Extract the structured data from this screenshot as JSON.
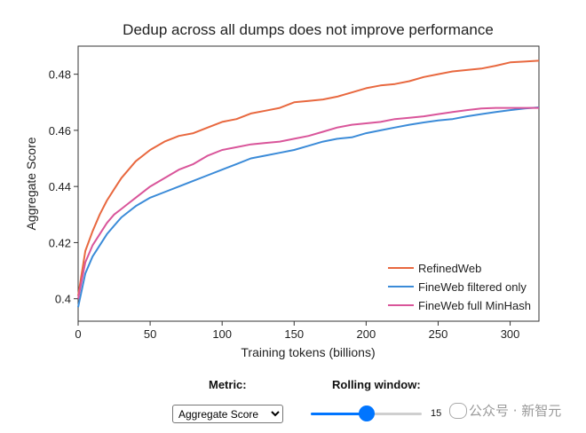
{
  "chart_data": {
    "type": "line",
    "title": "Dedup across all dumps does not improve performance",
    "xlabel": "Training tokens (billions)",
    "ylabel": "Aggregate Score",
    "xlim": [
      0,
      320
    ],
    "ylim": [
      0.392,
      0.49
    ],
    "xticks": [
      0,
      50,
      100,
      150,
      200,
      250,
      300
    ],
    "yticks": [
      0.4,
      0.42,
      0.44,
      0.46,
      0.48
    ],
    "xtick_labels": [
      "0",
      "50",
      "100",
      "150",
      "200",
      "250",
      "300"
    ],
    "ytick_labels": [
      "0.4",
      "0.42",
      "0.44",
      "0.46",
      "0.48"
    ],
    "grid": false,
    "legend_position": "bottom-right",
    "series": [
      {
        "name": "RefinedWeb",
        "color": "#e8683f",
        "x": [
          0,
          5,
          10,
          15,
          20,
          25,
          30,
          35,
          40,
          50,
          60,
          70,
          80,
          90,
          100,
          110,
          120,
          130,
          140,
          150,
          160,
          170,
          180,
          190,
          200,
          210,
          220,
          230,
          240,
          250,
          260,
          270,
          280,
          290,
          300,
          310,
          320
        ],
        "y": [
          0.401,
          0.417,
          0.424,
          0.43,
          0.435,
          0.439,
          0.443,
          0.446,
          0.449,
          0.453,
          0.456,
          0.458,
          0.459,
          0.461,
          0.463,
          0.464,
          0.466,
          0.467,
          0.468,
          0.47,
          0.4705,
          0.471,
          0.472,
          0.4735,
          0.475,
          0.476,
          0.4765,
          0.4775,
          0.479,
          0.48,
          0.481,
          0.4815,
          0.482,
          0.483,
          0.4842,
          0.4845,
          0.4848
        ]
      },
      {
        "name": "FineWeb filtered only",
        "color": "#3b8bd8",
        "x": [
          0,
          5,
          10,
          15,
          20,
          25,
          30,
          35,
          40,
          50,
          60,
          70,
          80,
          90,
          100,
          110,
          120,
          130,
          140,
          150,
          160,
          170,
          180,
          190,
          200,
          210,
          220,
          230,
          240,
          250,
          260,
          270,
          280,
          290,
          300,
          310,
          320
        ],
        "y": [
          0.397,
          0.409,
          0.415,
          0.419,
          0.423,
          0.426,
          0.429,
          0.431,
          0.433,
          0.436,
          0.438,
          0.44,
          0.442,
          0.444,
          0.446,
          0.448,
          0.45,
          0.451,
          0.452,
          0.453,
          0.4545,
          0.456,
          0.457,
          0.4575,
          0.459,
          0.46,
          0.461,
          0.462,
          0.4628,
          0.4635,
          0.464,
          0.465,
          0.4658,
          0.4665,
          0.4672,
          0.4678,
          0.4682
        ]
      },
      {
        "name": "FineWeb full MinHash",
        "color": "#d9559a",
        "x": [
          0,
          5,
          10,
          15,
          20,
          25,
          30,
          35,
          40,
          50,
          60,
          70,
          80,
          90,
          100,
          110,
          120,
          130,
          140,
          150,
          160,
          170,
          180,
          190,
          200,
          210,
          220,
          230,
          240,
          250,
          260,
          270,
          280,
          290,
          300,
          310,
          320
        ],
        "y": [
          0.4,
          0.413,
          0.419,
          0.423,
          0.427,
          0.43,
          0.432,
          0.434,
          0.436,
          0.44,
          0.443,
          0.446,
          0.448,
          0.451,
          0.453,
          0.454,
          0.455,
          0.4555,
          0.456,
          0.457,
          0.458,
          0.4595,
          0.461,
          0.462,
          0.4625,
          0.463,
          0.464,
          0.4645,
          0.465,
          0.4658,
          0.4665,
          0.4672,
          0.4678,
          0.468,
          0.468,
          0.468,
          0.468
        ]
      }
    ]
  },
  "controls": {
    "metric_label": "Metric:",
    "metric_value": "Aggregate Score",
    "rolling_label": "Rolling window:",
    "rolling_value": "15",
    "rolling_fraction": 0.5
  },
  "watermark": {
    "text": "公众号 · 新智元"
  }
}
